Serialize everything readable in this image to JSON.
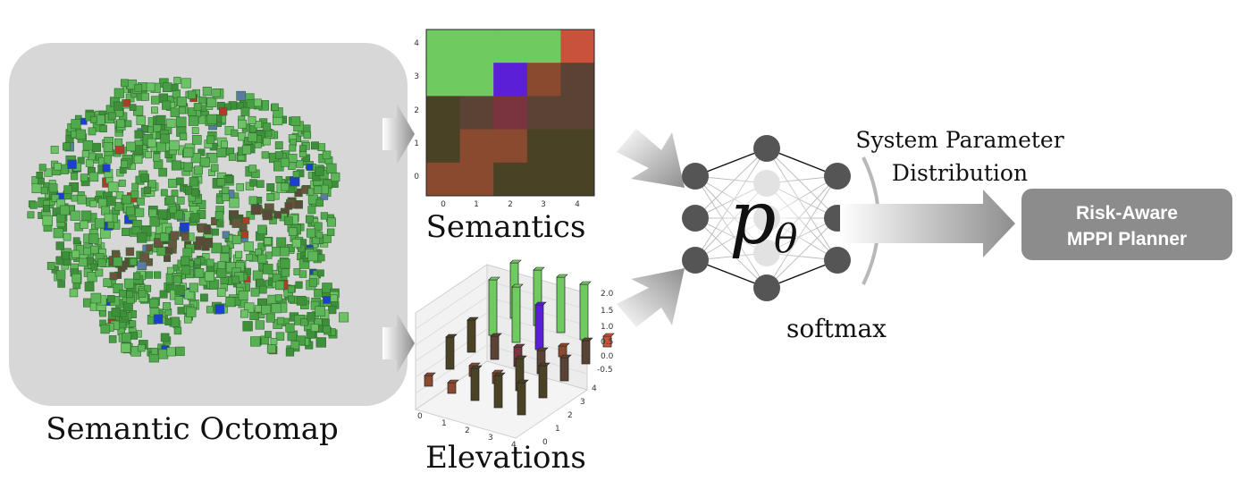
{
  "labels": {
    "octomap": "Semantic Octomap",
    "semantics": "Semantics",
    "elevations": "Elevations",
    "network_symbol": "p",
    "network_subscript": "θ",
    "softmax": "softmax",
    "param_line1": "System Parameter",
    "param_line2": "Distribution",
    "planner_line1": "Risk-Aware",
    "planner_line2": "MPPI Planner"
  },
  "colors": {
    "vegetation": "#5fb65a",
    "vegetation_dark": "#3e8f3a",
    "semantic_green": "#6fcb5f",
    "semantic_red": "#c9533a",
    "semantic_purple": "#5a1fd6",
    "semantic_brown": "#5a4235",
    "semantic_olive": "#4a4224",
    "semantic_rust": "#8a4a30",
    "planner_bg": "#8c8c8c",
    "arrow": "#9a9a9a"
  },
  "semantics_heatmap": {
    "x_ticks": [
      "0",
      "1",
      "2",
      "3",
      "4"
    ],
    "y_ticks": [
      "4",
      "3",
      "2",
      "1",
      "0"
    ],
    "grid": [
      [
        "green",
        "green",
        "green",
        "green",
        "red"
      ],
      [
        "green",
        "green",
        "purple",
        "rust",
        "brown"
      ],
      [
        "olive",
        "brown",
        "maroon",
        "brown",
        "brown"
      ],
      [
        "olive",
        "rust",
        "rust",
        "olive",
        "olive"
      ],
      [
        "rust",
        "rust",
        "olive",
        "olive",
        "olive"
      ]
    ]
  },
  "elevation_axis": {
    "z_ticks": [
      "2.0",
      "1.5",
      "1.0",
      "0.5",
      "0.0",
      "-0.5"
    ],
    "x_ticks": [
      "0",
      "1",
      "2",
      "3",
      "4"
    ],
    "y_ticks": [
      "0",
      "1",
      "2",
      "3",
      "4"
    ]
  }
}
